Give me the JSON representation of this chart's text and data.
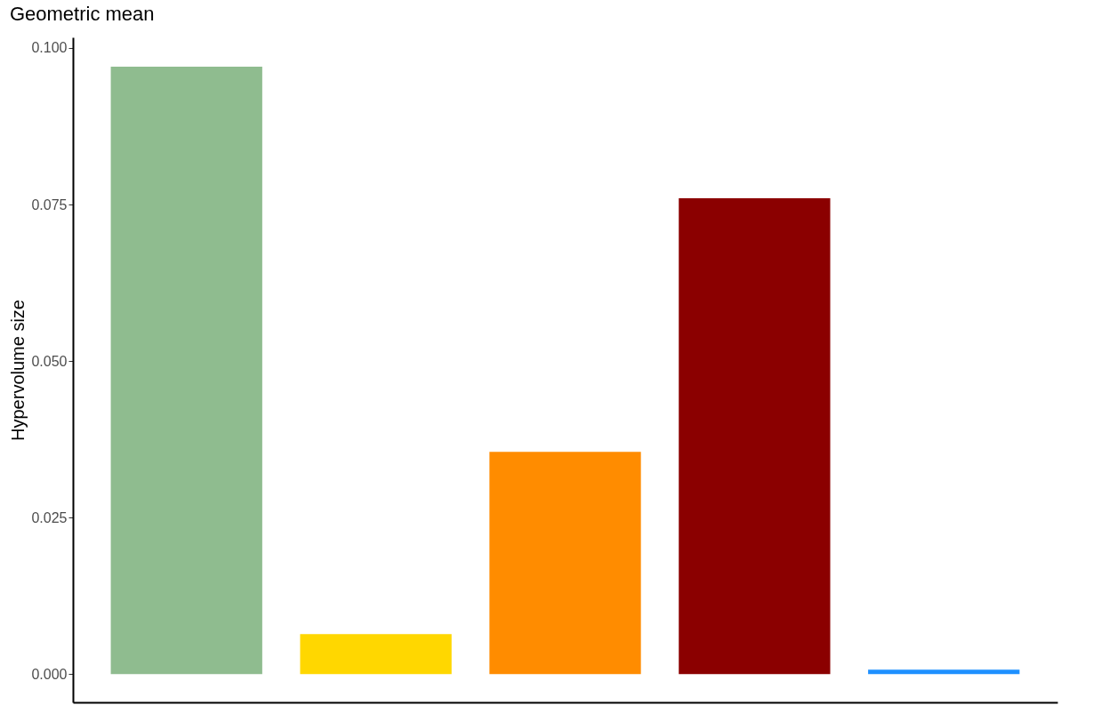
{
  "chart_data": {
    "type": "bar",
    "title": "Geometric mean",
    "ylabel": "Hypervolume size",
    "categories": [
      null,
      null,
      null,
      null,
      null
    ],
    "values": [
      0.097,
      0.0064,
      0.0355,
      0.076,
      0.0007
    ],
    "colors": [
      "#8fbc8f",
      "#ffd700",
      "#ff8c00",
      "#8b0000",
      "#1e90ff"
    ],
    "ylim": [
      -0.0045,
      0.1017
    ],
    "yticks": [
      {
        "value": 0,
        "label": "0.000"
      },
      {
        "value": 0.025,
        "label": "0.025"
      },
      {
        "value": 0.05,
        "label": "0.050"
      },
      {
        "value": 0.075,
        "label": "0.075"
      },
      {
        "value": 0.1,
        "label": "0.100"
      }
    ],
    "grid": false,
    "tick_labels": "y"
  }
}
